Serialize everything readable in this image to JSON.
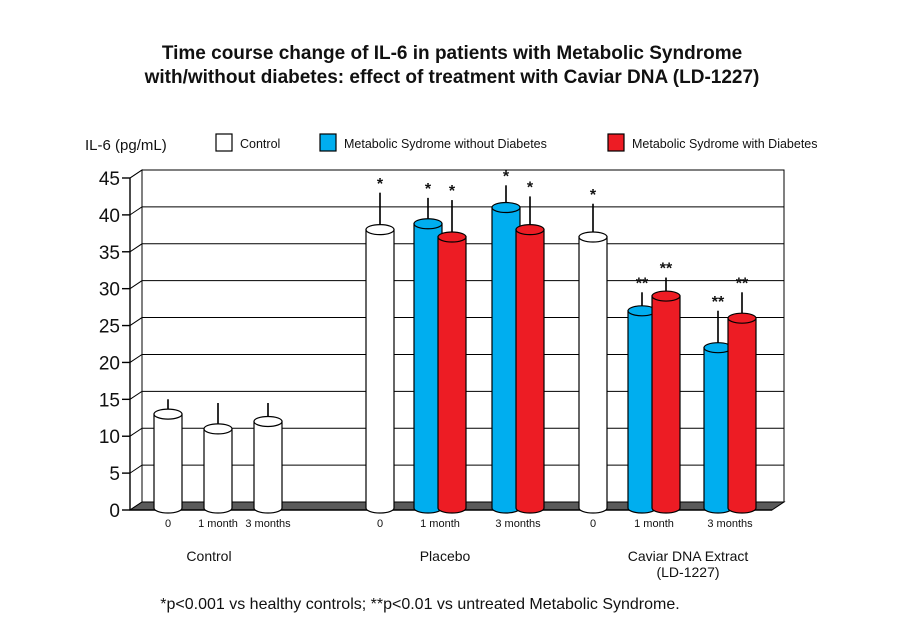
{
  "chart_data": {
    "type": "bar",
    "title": [
      "Time course change of IL-6 in patients with Metabolic Syndrome",
      "with/without diabetes: effect of treatment with Caviar DNA (LD-1227)"
    ],
    "ylabel": "IL-6 (pg/mL)",
    "ylim": [
      0,
      45
    ],
    "yticks": [
      0,
      5,
      10,
      15,
      20,
      25,
      30,
      35,
      40,
      45
    ],
    "grid": true,
    "legend": {
      "placement": "top",
      "entries": [
        {
          "name": "Control",
          "color": "#ffffff"
        },
        {
          "name": "Metabolic Sydrome without Diabetes",
          "color": "#00aeef"
        },
        {
          "name": "Metabolic Sydrome with Diabetes",
          "color": "#ed1c24"
        }
      ]
    },
    "groups": [
      {
        "label": [
          "Control"
        ],
        "times": [
          {
            "label": "0",
            "bars": [
              {
                "series": 0,
                "value": 13,
                "err": 2,
                "sig": ""
              }
            ]
          },
          {
            "label": "1 month",
            "bars": [
              {
                "series": 0,
                "value": 11,
                "err": 3.5,
                "sig": ""
              }
            ]
          },
          {
            "label": "3 months",
            "bars": [
              {
                "series": 0,
                "value": 12,
                "err": 2.5,
                "sig": ""
              }
            ]
          }
        ]
      },
      {
        "label": [
          "Placebo"
        ],
        "times": [
          {
            "label": "0",
            "bars": [
              {
                "series": 0,
                "value": 38,
                "err": 5,
                "sig": "*"
              }
            ]
          },
          {
            "label": "1 month",
            "bars": [
              {
                "series": 1,
                "value": 38.8,
                "err": 3.5,
                "sig": "*"
              },
              {
                "series": 2,
                "value": 37,
                "err": 5,
                "sig": "*"
              }
            ]
          },
          {
            "label": "3 months",
            "bars": [
              {
                "series": 1,
                "value": 41,
                "err": 3,
                "sig": "*"
              },
              {
                "series": 2,
                "value": 38,
                "err": 4.5,
                "sig": "*"
              }
            ]
          }
        ]
      },
      {
        "label": [
          "Caviar DNA Extract",
          "(LD-1227)"
        ],
        "times": [
          {
            "label": "0",
            "bars": [
              {
                "series": 0,
                "value": 37,
                "err": 4.5,
                "sig": "*"
              }
            ]
          },
          {
            "label": "1 month",
            "bars": [
              {
                "series": 1,
                "value": 27,
                "err": 2.5,
                "sig": "**"
              },
              {
                "series": 2,
                "value": 29,
                "err": 2.5,
                "sig": "**"
              }
            ]
          },
          {
            "label": "3 months",
            "bars": [
              {
                "series": 1,
                "value": 22,
                "err": 5,
                "sig": "**"
              },
              {
                "series": 2,
                "value": 26,
                "err": 3.5,
                "sig": "**"
              }
            ]
          }
        ]
      }
    ]
  },
  "footnote": "*p<0.001 vs healthy controls; **p<0.01 vs untreated Metabolic Syndrome."
}
